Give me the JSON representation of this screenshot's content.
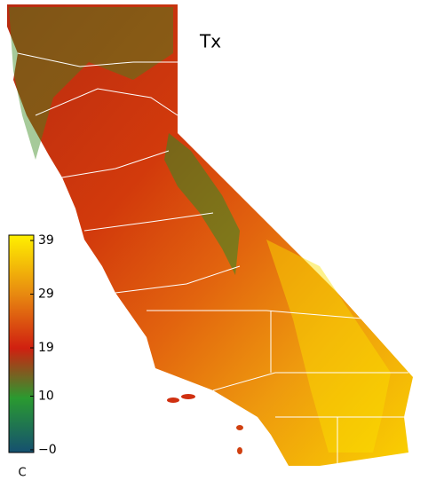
{
  "title": "Tx",
  "colorbar": {
    "unit": "C",
    "range": [
      -0.5,
      40
    ],
    "ticks": [
      39,
      29,
      19,
      10,
      {
        "value": 0,
        "label": "−0"
      }
    ]
  }
}
